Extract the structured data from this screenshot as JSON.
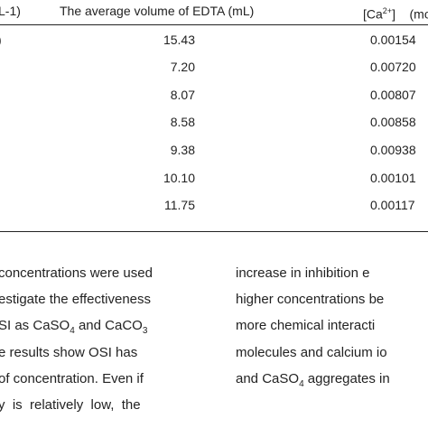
{
  "table": {
    "header": {
      "col1": "L-1)",
      "col2": "The average volume of EDTA (mL)",
      "col3_prefix": "[Ca",
      "col3_sup": "2+",
      "col3_suffix": "]    (mo"
    },
    "rows": [
      {
        "c1": ")",
        "c2": "15.43",
        "c3": "0.00154"
      },
      {
        "c1": "",
        "c2": "7.20",
        "c3": "0.00720"
      },
      {
        "c1": "",
        "c2": "8.07",
        "c3": "0.00807"
      },
      {
        "c1": "",
        "c2": "8.58",
        "c3": "0.00858"
      },
      {
        "c1": "",
        "c2": "9.38",
        "c3": "0.00938"
      },
      {
        "c1": "",
        "c2": "10.10",
        "c3": "0.00101"
      },
      {
        "c1": "",
        "c2": "11.75",
        "c3": "0.00117"
      }
    ]
  },
  "body_text": {
    "left_column": [
      "concentrations were used",
      "estigate the effectiveness",
      "SI as CaSO4 and CaCO3",
      "e results show OSI has",
      "of concentration. Even if",
      "y  is  relatively  low,  the"
    ],
    "right_column": [
      "increase in inhibition e",
      "higher concentrations be",
      "more chemical interacti",
      "molecules and calcium io",
      "and CaSO4 aggregates in"
    ]
  }
}
